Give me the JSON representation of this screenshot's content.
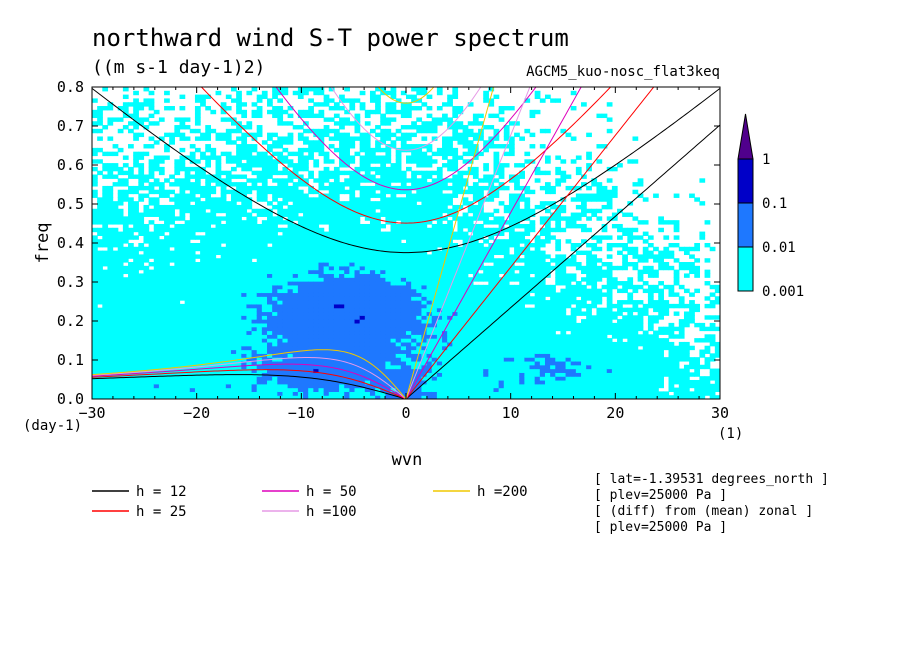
{
  "chart_data": {
    "type": "heatmap",
    "title": "northward wind S-T power spectrum",
    "subtitle": "((m s-1 day-1)2)",
    "model_label": "AGCM5_kuo-nosc_flat3keq",
    "xlabel": "wvn",
    "ylabel": "freq",
    "x_unit_label": "(1)",
    "y_unit_label": "(day-1)",
    "xlim": [
      -30,
      30
    ],
    "ylim": [
      0,
      0.8
    ],
    "xticks": [
      -30,
      -20,
      -10,
      0,
      10,
      20,
      30
    ],
    "yticks": [
      0.0,
      0.1,
      0.2,
      0.3,
      0.4,
      0.5,
      0.6,
      0.7,
      0.8
    ],
    "xtick_labels": [
      "-30",
      "-20",
      "-10",
      "0",
      "10",
      "20",
      "30"
    ],
    "ytick_labels": [
      "0.0",
      "0.1",
      "0.2",
      "0.3",
      "0.4",
      "0.5",
      "0.6",
      "0.7",
      "0.8"
    ],
    "colorbar": {
      "levels": [
        0.001,
        0.01,
        0.1,
        1
      ],
      "labels": [
        "0.001",
        "0.01",
        "0.1",
        "1"
      ],
      "colors": [
        "#00ffff",
        "#1e78ff",
        "#0000c8",
        "#50008c"
      ]
    },
    "dispersion_curves": [
      {
        "label": "h = 12",
        "h": 12,
        "color": "#000000"
      },
      {
        "label": "h = 25",
        "h": 25,
        "color": "#ff0000"
      },
      {
        "label": "h = 50",
        "h": 50,
        "color": "#dd00bb"
      },
      {
        "label": "h =100",
        "h": 100,
        "color": "#e69ae6"
      },
      {
        "label": "h =200",
        "h": 200,
        "color": "#f0c800"
      }
    ],
    "annotations": [
      "[ lat=-1.39531 degrees_north ]",
      "[ plev=25000 Pa ]",
      "[ (diff) from (mean) zonal ]",
      "[ plev=25000 Pa ]"
    ]
  }
}
